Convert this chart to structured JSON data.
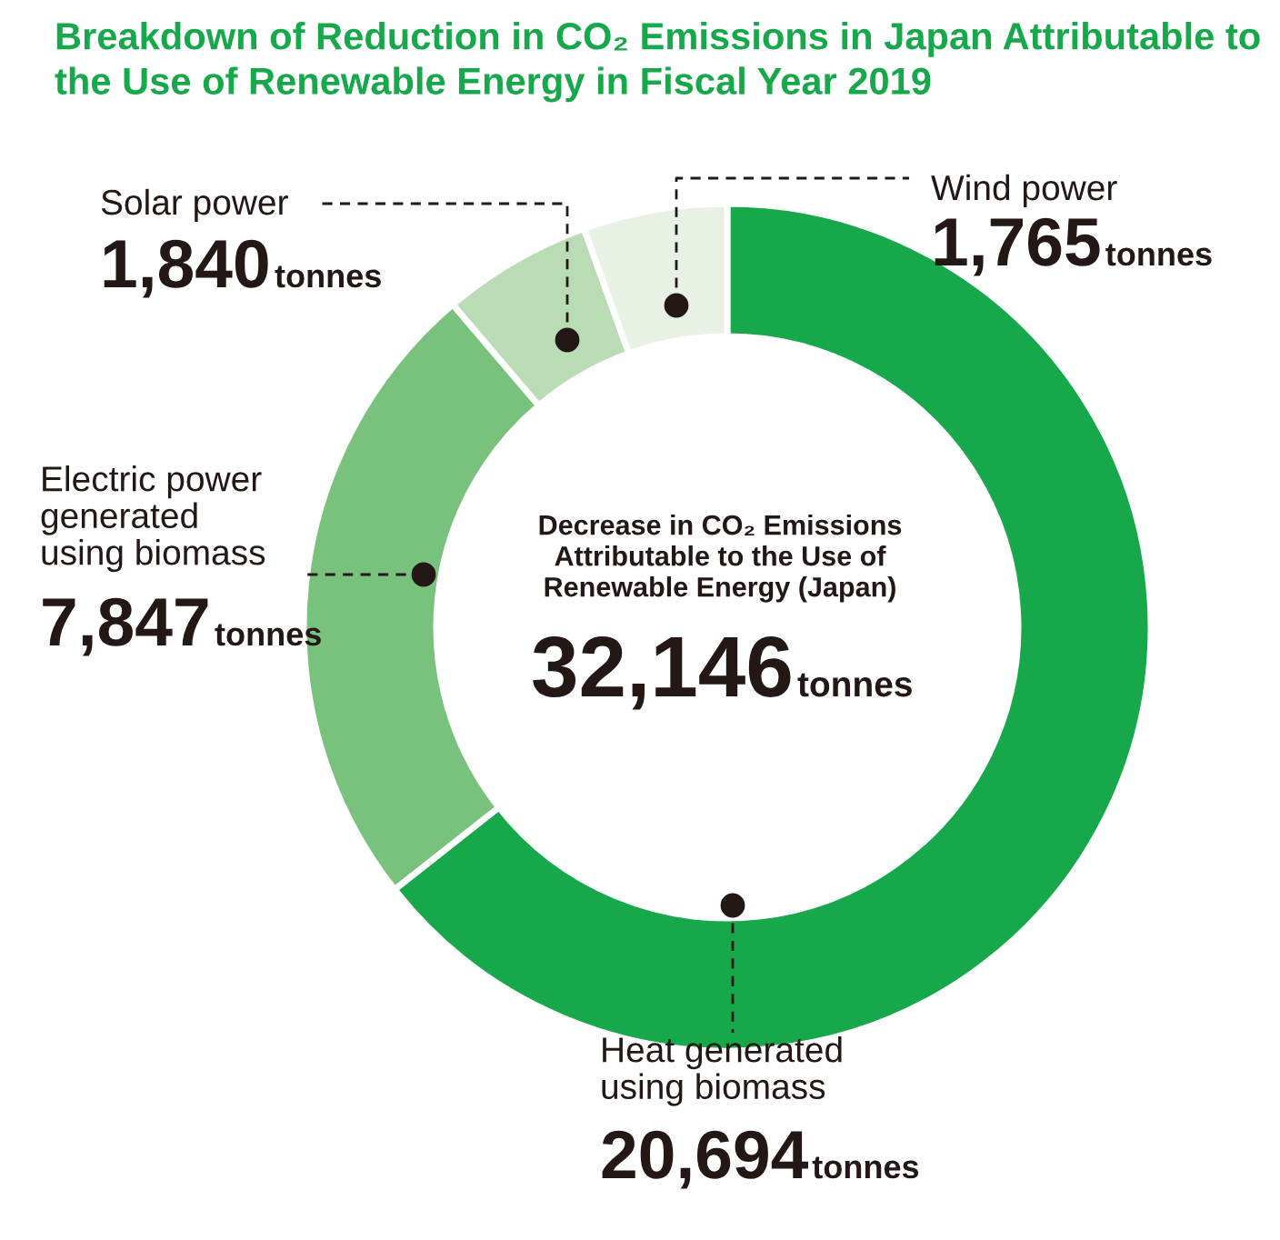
{
  "chart_data": {
    "type": "donut",
    "title": "Breakdown of Reduction in CO₂ Emissions in Japan Attributable to the Use of Renewable Energy in Fiscal Year 2019",
    "categories": [
      "Heat generated\nusing biomass",
      "Electric power\ngenerated\nusing biomass",
      "Solar power",
      "Wind power"
    ],
    "values": [
      20694,
      7847,
      1840,
      1765
    ],
    "colors": [
      "#16a84a",
      "#79c27d",
      "#badcb5",
      "#e7f2e4"
    ],
    "value_labels": [
      "20,694 tonnes",
      "7,847 tonnes",
      "1,840 tonnes",
      "1,765 tonnes"
    ],
    "annotations": [
      "Decrease in CO₂ Emissions\nAttributable to the Use of\nRenewable Energy (Japan)",
      "32,146 tonnes"
    ]
  }
}
